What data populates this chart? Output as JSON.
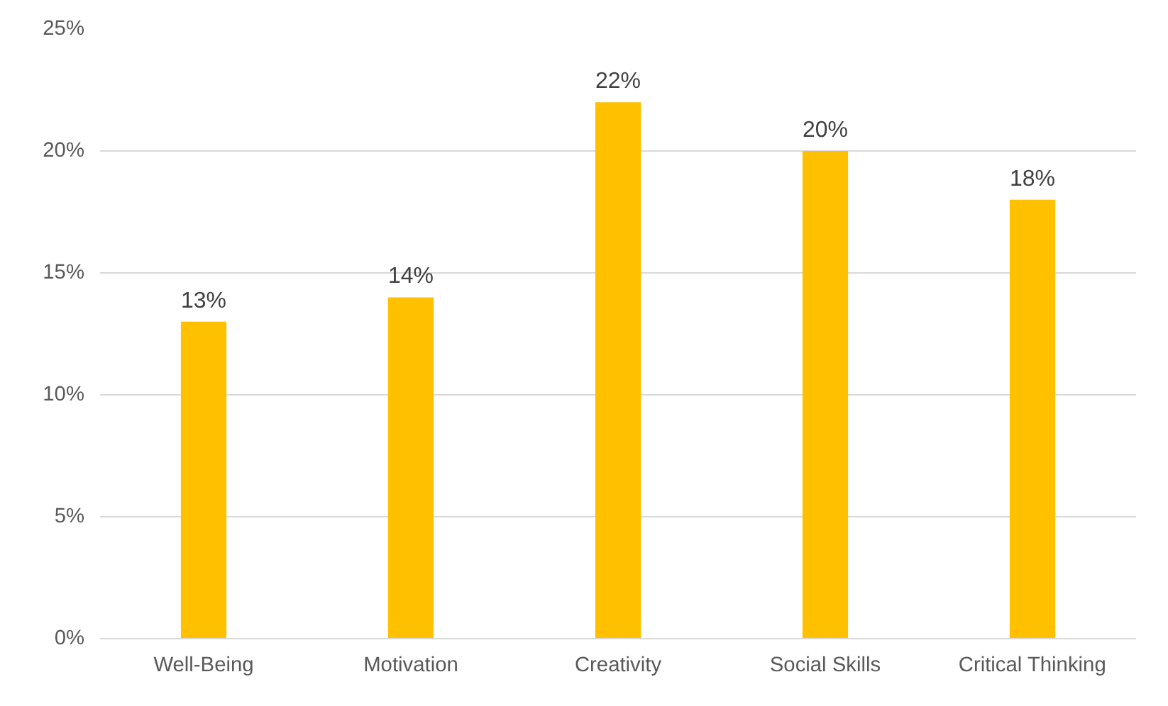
{
  "chart_data": {
    "type": "bar",
    "categories": [
      "Well-Being",
      "Motivation",
      "Creativity",
      "Social Skills",
      "Critical Thinking"
    ],
    "values": [
      13,
      14,
      22,
      20,
      18
    ],
    "value_labels": [
      "13%",
      "14%",
      "22%",
      "20%",
      "18%"
    ],
    "color": "#ffc000",
    "ylim": [
      0,
      25
    ],
    "yticks": [
      {
        "value": 0,
        "label": "0%"
      },
      {
        "value": 5,
        "label": "5%"
      },
      {
        "value": 10,
        "label": "10%"
      },
      {
        "value": 15,
        "label": "15%"
      },
      {
        "value": 20,
        "label": "20%"
      },
      {
        "value": 25,
        "label": "25%"
      }
    ],
    "grid": "y"
  }
}
